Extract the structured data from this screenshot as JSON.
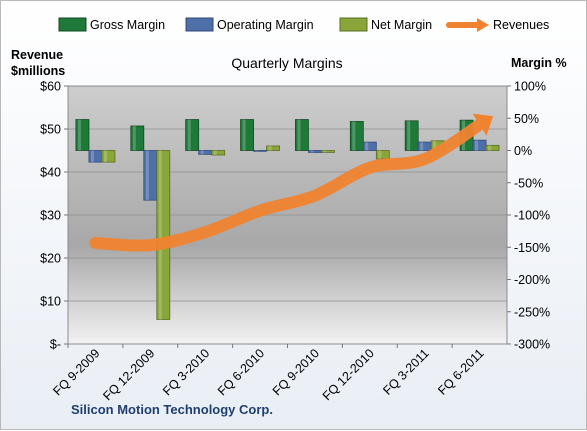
{
  "chart_data": {
    "type": "bar",
    "title": "Quarterly Margins",
    "footer": "Silicon Motion Technology Corp.",
    "categories": [
      "FQ 9-2009",
      "FQ 12-2009",
      "FQ 3-2010",
      "FQ 6-2010",
      "FQ 9-2010",
      "FQ 12-2010",
      "FQ 3-2011",
      "FQ 6-2011"
    ],
    "series": [
      {
        "name": "Gross Margin",
        "axis": "right",
        "color": "#1f7a3a",
        "values": [
          48,
          38,
          48,
          48,
          48,
          45,
          46,
          47
        ]
      },
      {
        "name": "Operating Margin",
        "axis": "right",
        "color": "#4f6fa8",
        "values": [
          -18,
          -77,
          -6,
          -1,
          -3,
          13,
          13,
          16
        ]
      },
      {
        "name": "Net Margin",
        "axis": "right",
        "color": "#8aa53a",
        "values": [
          -18,
          -262,
          -7,
          7,
          -3,
          -13,
          15,
          8
        ]
      },
      {
        "name": "Revenues",
        "axis": "left",
        "type": "line",
        "color": "#f0832f",
        "values": [
          23.5,
          23,
          26,
          31,
          34.5,
          41,
          43,
          51
        ]
      }
    ],
    "left_axis": {
      "label": "Revenue\n$millions",
      "ticks": [
        "$-",
        "$10",
        "$20",
        "$30",
        "$40",
        "$50",
        "$60"
      ],
      "ylim": [
        0,
        60
      ]
    },
    "right_axis": {
      "label": "Margin %",
      "ticks": [
        "-300%",
        "-250%",
        "-200%",
        "-150%",
        "-100%",
        "-50%",
        "0%",
        "50%",
        "100%"
      ],
      "ylim": [
        -300,
        100
      ]
    },
    "legend_position": "top"
  }
}
